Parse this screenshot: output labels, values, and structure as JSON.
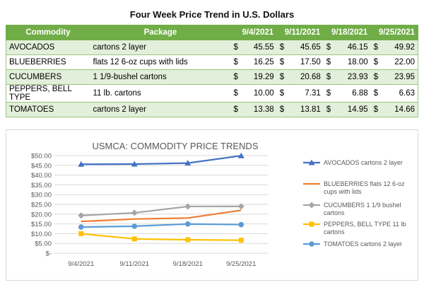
{
  "table": {
    "title": "Four Week Price Trend in U.S. Dollars",
    "headers": [
      "Commodity",
      "Package",
      "9/4/2021",
      "9/11/2021",
      "9/18/2021",
      "9/25/2021"
    ],
    "currency_symbol": "$",
    "rows": [
      {
        "commodity": "AVOCADOS",
        "package": "cartons 2 layer",
        "values": [
          "45.55",
          "45.65",
          "46.15",
          "49.92"
        ]
      },
      {
        "commodity": "BLUEBERRIES",
        "package": "flats 12 6-oz cups with lids",
        "values": [
          "16.25",
          "17.50",
          "18.00",
          "22.00"
        ]
      },
      {
        "commodity": "CUCUMBERS",
        "package": "1 1/9-bushel cartons",
        "values": [
          "19.29",
          "20.68",
          "23.93",
          "23.95"
        ]
      },
      {
        "commodity": "PEPPERS, BELL TYPE",
        "package": "11 lb. cartons",
        "values": [
          "10.00",
          "7.31",
          "6.88",
          "6.63"
        ]
      },
      {
        "commodity": "TOMATOES",
        "package": "cartons 2 layer",
        "values": [
          "13.38",
          "13.81",
          "14.95",
          "14.66"
        ]
      }
    ]
  },
  "chart_data": {
    "type": "line",
    "title": "USMCA: COMMODITY PRICE TRENDS",
    "categories": [
      "9/4/2021",
      "9/11/2021",
      "9/18/2021",
      "9/25/2021"
    ],
    "ylim": [
      0,
      50
    ],
    "yticks": [
      "$-",
      "$5.00",
      "$10.00",
      "$15.00",
      "$20.00",
      "$25.00",
      "$30.00",
      "$35.00",
      "$40.00",
      "$45.00",
      "$50.00"
    ],
    "grid": true,
    "legend_position": "right",
    "series": [
      {
        "name": "AVOCADOS cartons 2 layer",
        "values": [
          45.55,
          45.65,
          46.15,
          49.92
        ],
        "color": "#4472c4",
        "marker": "triangle"
      },
      {
        "name": "BLUEBERRIES flats 12 6-oz cups with lids",
        "values": [
          16.25,
          17.5,
          18.0,
          22.0
        ],
        "color": "#ed7d31",
        "marker": "none"
      },
      {
        "name": "CUCUMBERS 1 1/9 bushel cartons",
        "values": [
          19.29,
          20.68,
          23.93,
          23.95
        ],
        "color": "#a5a5a5",
        "marker": "diamond"
      },
      {
        "name": "PEPPERS, BELL TYPE 11 lb cartons",
        "values": [
          10.0,
          7.31,
          6.88,
          6.63
        ],
        "color": "#ffc000",
        "marker": "square"
      },
      {
        "name": "TOMATOES cartons 2 layer",
        "values": [
          13.38,
          13.81,
          14.95,
          14.66
        ],
        "color": "#5b9bd5",
        "marker": "circle"
      }
    ]
  }
}
